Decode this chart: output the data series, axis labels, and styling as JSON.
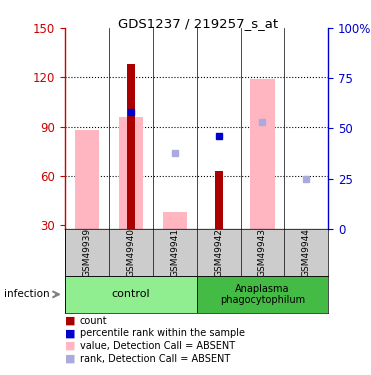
{
  "title": "GDS1237 / 219257_s_at",
  "samples": [
    "GSM49939",
    "GSM49940",
    "GSM49941",
    "GSM49942",
    "GSM49943",
    "GSM49944"
  ],
  "ylim_left": [
    28,
    150
  ],
  "ylim_right": [
    0,
    100
  ],
  "yticks_left": [
    30,
    60,
    90,
    120,
    150
  ],
  "yticks_right": [
    0,
    25,
    50,
    75,
    100
  ],
  "ytick_right_labels": [
    "0",
    "25",
    "50",
    "75",
    "100%"
  ],
  "bar_color_dark_red": "#AA0000",
  "bar_color_pink": "#FFB6C1",
  "dot_color_blue": "#0000CC",
  "dot_color_light_blue": "#AAAADD",
  "count_bars": [
    null,
    128,
    null,
    63,
    null,
    null
  ],
  "value_absent_bars": [
    88,
    96,
    38,
    null,
    119,
    null
  ],
  "rank_within_sample_dots": [
    null,
    58,
    null,
    46,
    null,
    null
  ],
  "rank_absent_dots": [
    null,
    null,
    38,
    null,
    53,
    25
  ],
  "legend_items": [
    {
      "label": "count",
      "color": "#AA0000"
    },
    {
      "label": "percentile rank within the sample",
      "color": "#0000CC"
    },
    {
      "label": "value, Detection Call = ABSENT",
      "color": "#FFB6C1"
    },
    {
      "label": "rank, Detection Call = ABSENT",
      "color": "#AAAADD"
    }
  ],
  "background_color": "#ffffff",
  "left_ylabel_color": "#CC0000",
  "right_ylabel_color": "#0000CC",
  "infection_label": "infection",
  "control_color": "#90EE90",
  "anaplasma_color": "#44BB44",
  "gray_color": "#CCCCCC"
}
